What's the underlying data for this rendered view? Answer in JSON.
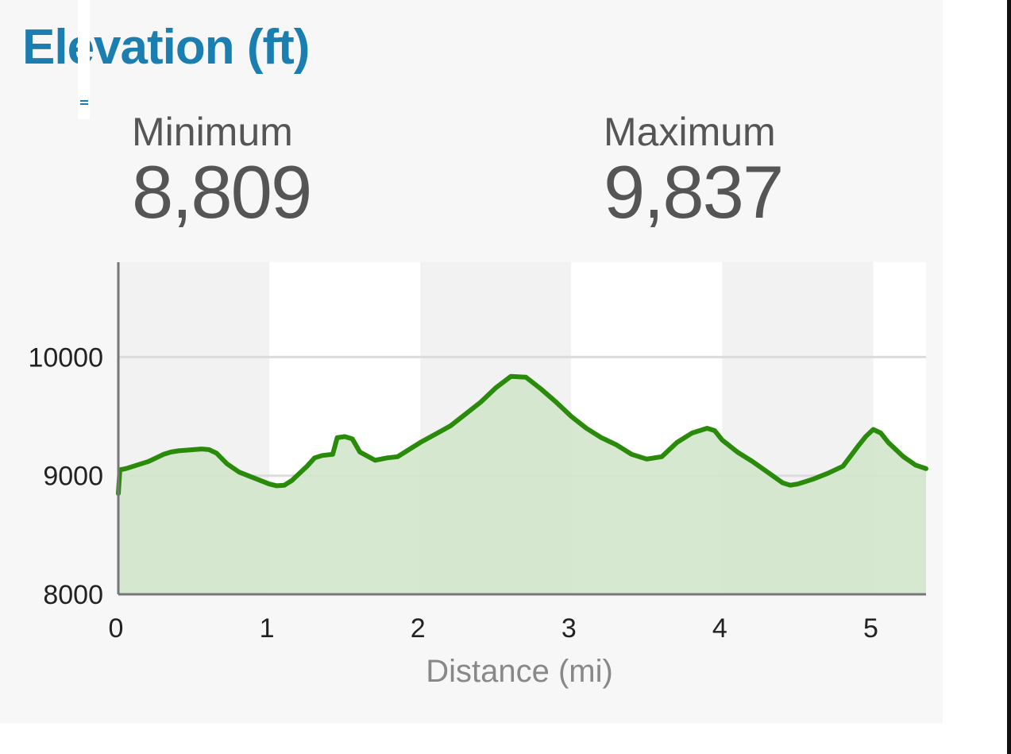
{
  "header": {
    "title": "Elevation (ft)"
  },
  "stats": {
    "minimum": {
      "label": "Minimum",
      "value": "8,809"
    },
    "maximum": {
      "label": "Maximum",
      "value": "9,837"
    }
  },
  "colors": {
    "title": "#1a7fb0",
    "line": "#2a8a0a",
    "area": "#d2e6cb",
    "text": "#555555"
  },
  "chart_data": {
    "type": "area",
    "title": "",
    "xlabel": "Distance (mi)",
    "ylabel": "",
    "xlim": [
      0,
      5.35
    ],
    "ylim": [
      8000,
      10800
    ],
    "xticks": [
      0,
      1,
      2,
      3,
      4,
      5
    ],
    "yticks": [
      8000,
      9000,
      10000
    ],
    "grid": true,
    "series": [
      {
        "x": [
          0,
          0.01,
          0.05,
          0.1,
          0.2,
          0.3,
          0.35,
          0.4,
          0.5,
          0.55,
          0.6,
          0.65,
          0.72,
          0.8,
          0.9,
          1.0,
          1.05,
          1.1,
          1.15,
          1.2,
          1.25,
          1.3,
          1.35,
          1.42,
          1.45,
          1.5,
          1.55,
          1.6,
          1.7,
          1.78,
          1.85,
          2.0,
          2.1,
          2.2,
          2.3,
          2.4,
          2.5,
          2.6,
          2.7,
          2.8,
          2.9,
          3.0,
          3.1,
          3.2,
          3.3,
          3.4,
          3.5,
          3.6,
          3.7,
          3.8,
          3.9,
          3.95,
          4.0,
          4.1,
          4.2,
          4.3,
          4.4,
          4.45,
          4.5,
          4.6,
          4.7,
          4.8,
          4.9,
          4.95,
          5.0,
          5.05,
          5.1,
          5.2,
          5.28,
          5.35
        ],
        "y": [
          8850,
          9050,
          9060,
          9080,
          9120,
          9180,
          9200,
          9210,
          9220,
          9225,
          9220,
          9190,
          9100,
          9030,
          8980,
          8930,
          8915,
          8920,
          8960,
          9020,
          9080,
          9150,
          9170,
          9180,
          9320,
          9330,
          9310,
          9200,
          9130,
          9150,
          9160,
          9280,
          9350,
          9420,
          9520,
          9620,
          9740,
          9837,
          9830,
          9730,
          9620,
          9500,
          9400,
          9320,
          9260,
          9180,
          9140,
          9160,
          9280,
          9360,
          9400,
          9380,
          9300,
          9200,
          9120,
          9030,
          8940,
          8920,
          8930,
          8970,
          9020,
          9080,
          9250,
          9330,
          9390,
          9360,
          9280,
          9160,
          9090,
          9060
        ]
      }
    ]
  }
}
